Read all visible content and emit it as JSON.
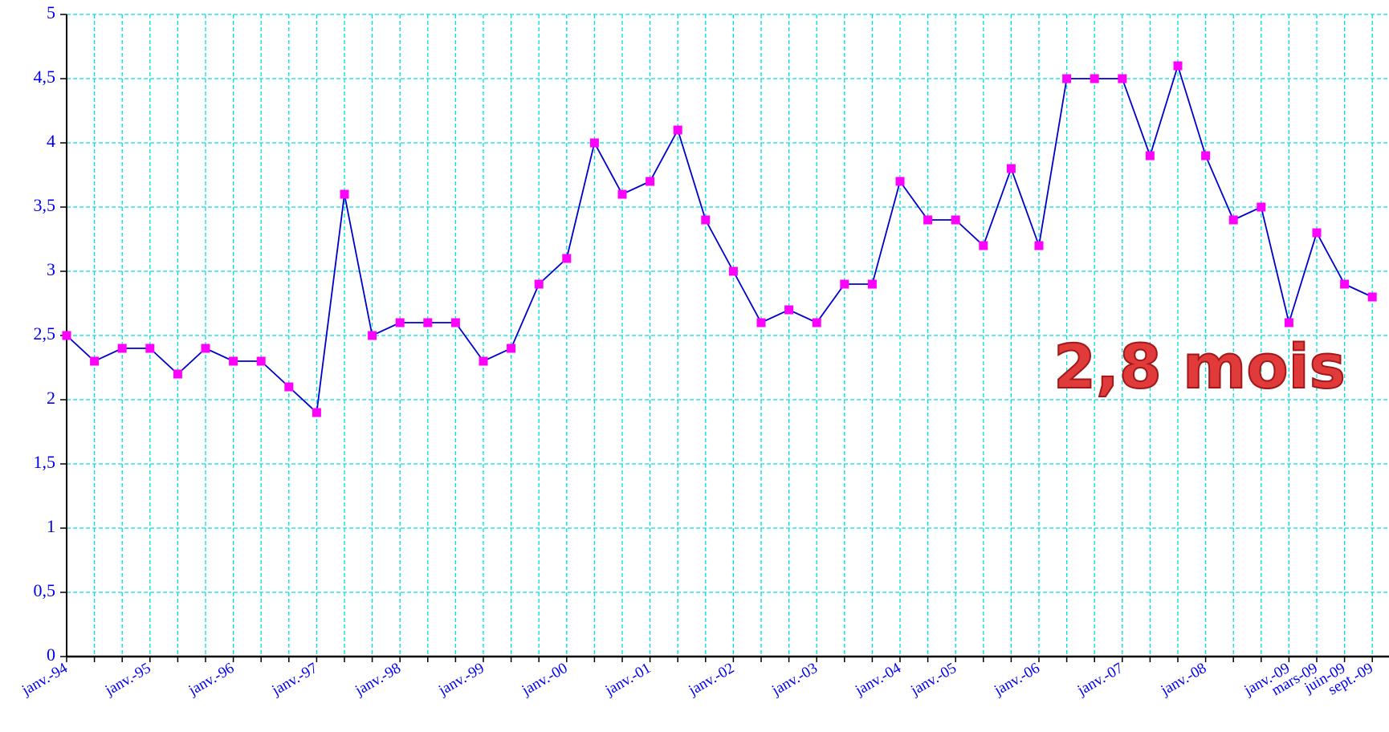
{
  "chart_data": {
    "type": "line",
    "annotation": "2,8 mois",
    "categories": [
      "janv.-94",
      null,
      null,
      "janv.-95",
      null,
      null,
      "janv.-96",
      null,
      null,
      "janv.-97",
      null,
      null,
      "janv.-98",
      null,
      null,
      "janv.-99",
      null,
      null,
      "janv.-00",
      null,
      null,
      "janv.-01",
      null,
      null,
      "janv.-02",
      null,
      null,
      "janv.-03",
      null,
      null,
      "janv.-04",
      null,
      "janv.-05",
      null,
      null,
      "janv.-06",
      null,
      null,
      "janv.-07",
      null,
      null,
      "janv.-08",
      null,
      null,
      "janv.-09",
      "mars-09",
      "juin-09",
      "sept.-09"
    ],
    "series": [
      {
        "name": null,
        "color": "#0000cc",
        "marker_color": "#ff00ff",
        "values": [
          2.5,
          2.3,
          2.4,
          2.4,
          2.2,
          2.4,
          2.3,
          2.3,
          2.1,
          1.9,
          3.6,
          2.5,
          2.6,
          2.6,
          2.6,
          2.3,
          2.4,
          2.9,
          3.1,
          4.0,
          3.6,
          3.7,
          4.1,
          3.4,
          3.0,
          2.6,
          2.7,
          2.6,
          2.9,
          2.9,
          3.7,
          3.4,
          3.4,
          3.2,
          3.8,
          3.2,
          4.5,
          4.5,
          4.5,
          3.9,
          4.6,
          3.9,
          3.4,
          3.5,
          2.6,
          3.3,
          2.9,
          2.8
        ]
      }
    ],
    "ylim": [
      0,
      5
    ],
    "yticks": [
      0,
      {
        "value": 0.5,
        "label": "0,5"
      },
      1,
      {
        "value": 1.5,
        "label": "1,5"
      },
      2,
      {
        "value": 2.5,
        "label": "2,5"
      },
      3,
      {
        "value": 3.5,
        "label": "3,5"
      },
      4,
      {
        "value": 4.5,
        "label": "4,5"
      },
      5
    ],
    "grid": true,
    "grid_color": "#00e0e0"
  }
}
